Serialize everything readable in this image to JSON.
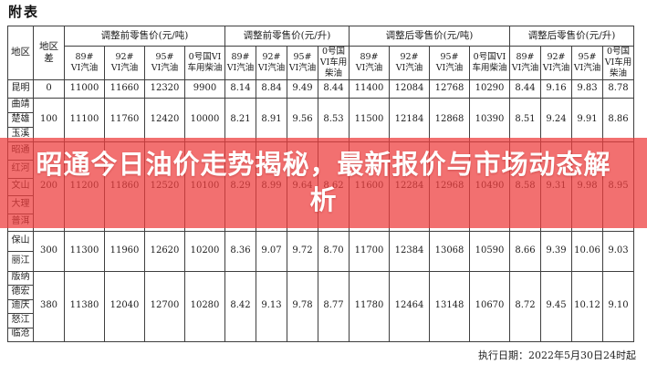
{
  "title": "附表",
  "banner": {
    "text": "昭通今日油价走势揭秘，最新报价与市场动态解析",
    "bg_rgba": "rgba(238,62,62,0.74)",
    "text_color": "#ffffff"
  },
  "footer": {
    "execution_date": "执行日期：2022年5月30日24时起"
  },
  "colors": {
    "table_border": "#3f3f3f",
    "background": "#ffffff"
  },
  "table": {
    "corner": {
      "region": "地区",
      "region_diff": "地区差"
    },
    "groups": [
      {
        "label": "调整前零售价(元/吨)",
        "columns": [
          "89#\nVI汽油",
          "92#\nVI汽油",
          "95#\nVI汽油",
          "0号国VI车用柴油"
        ]
      },
      {
        "label": "调整前零售价(元/升)",
        "columns": [
          "89#\nVI汽油",
          "92#\nVI汽油",
          "95#\nVI汽油",
          "0号国VI车用柴油"
        ]
      },
      {
        "label": "调整后零售价(元/吨)",
        "columns": [
          "89#\nVI汽油",
          "92#\nVI汽油",
          "95#\nVI汽油",
          "0号国VI车用柴油"
        ]
      },
      {
        "label": "调整后零售价(元/升)",
        "columns": [
          "89#\nVI汽油",
          "92#\nVI汽油",
          "95#\nVI汽油",
          "0号国VI车用柴油"
        ]
      }
    ],
    "row_groups": [
      {
        "regions": [
          "昆明"
        ],
        "diff": "0",
        "values": [
          "11000",
          "11660",
          "12320",
          "9900",
          "8.14",
          "8.84",
          "9.49",
          "8.44",
          "11400",
          "12084",
          "12768",
          "10290",
          "8.44",
          "9.16",
          "9.83",
          "8.78"
        ]
      },
      {
        "regions": [
          "曲靖",
          "楚雄",
          "玉溪"
        ],
        "diff": "100",
        "values": [
          "11100",
          "11760",
          "12420",
          "10000",
          "8.21",
          "8.91",
          "9.56",
          "8.53",
          "11500",
          "12184",
          "12868",
          "10390",
          "8.51",
          "9.24",
          "9.91",
          "8.86"
        ]
      },
      {
        "regions": [
          "昭通",
          "红河",
          "文山",
          "大理",
          "普洱"
        ],
        "diff": "200",
        "values": [
          "11200",
          "11860",
          "12520",
          "10100",
          "8.29",
          "8.99",
          "9.64",
          "8.62",
          "11600",
          "12284",
          "12968",
          "10490",
          "8.58",
          "9.31",
          "9.98",
          "8.95"
        ]
      },
      {
        "regions": [
          "保山",
          "丽江"
        ],
        "diff": "300",
        "values": [
          "11300",
          "11960",
          "12620",
          "10200",
          "8.36",
          "9.07",
          "9.72",
          "8.70",
          "11700",
          "12384",
          "13068",
          "10590",
          "8.66",
          "9.39",
          "10.06",
          "9.03"
        ]
      },
      {
        "regions": [
          "版纳",
          "德宏",
          "迪庆",
          "怒江",
          "临沧"
        ],
        "diff": "380",
        "values": [
          "11380",
          "12040",
          "12700",
          "10280",
          "8.42",
          "9.13",
          "9.78",
          "8.77",
          "11780",
          "12464",
          "13148",
          "10670",
          "8.72",
          "9.45",
          "10.12",
          "9.10"
        ]
      }
    ]
  }
}
